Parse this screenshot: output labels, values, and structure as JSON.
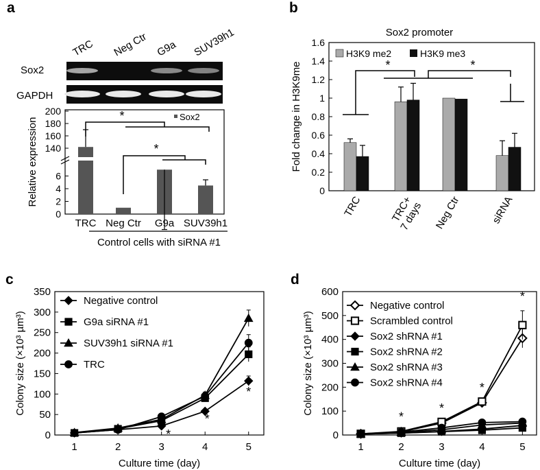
{
  "panels": {
    "a": {
      "letter": "a",
      "blot": {
        "lanes": [
          "TRC",
          "Neg Ctr",
          "G9a",
          "SUV39h1"
        ],
        "rows": [
          "Sox2",
          "GAPDH"
        ],
        "sox2_intensity": [
          0.75,
          0.0,
          0.55,
          0.5
        ],
        "gapdh_intensity": [
          0.95,
          0.95,
          0.95,
          0.95
        ]
      },
      "chart_data": {
        "type": "bar",
        "ylabel": "Relative expression",
        "xlabel": "Control cells with siRNA #1",
        "categories": [
          "TRC",
          "Neg Ctr",
          "G9a",
          "SUV39h1"
        ],
        "values": [
          142,
          1,
          7,
          4.5
        ],
        "errors": [
          28,
          0,
          1.3,
          0.9
        ],
        "y_lower_ticks": [
          0,
          2,
          4,
          6
        ],
        "y_upper_ticks": [
          140,
          160,
          180,
          200
        ],
        "y_axis_break": [
          8,
          130
        ],
        "legend": [
          "Sox2"
        ],
        "significance": [
          "*",
          "*"
        ],
        "bar_color": "#555555"
      }
    },
    "b": {
      "letter": "b",
      "chart_data": {
        "type": "bar",
        "title": "Sox2 promoter",
        "ylabel": "Fold change in H3K9me",
        "categories": [
          "TRC",
          "TRC+\n7 days",
          "Neg Ctr",
          "siRNA"
        ],
        "series": [
          {
            "name": "H3K9 me2",
            "values": [
              0.52,
              0.96,
              1.0,
              0.38
            ],
            "errors": [
              0.04,
              0.16,
              0.0,
              0.16
            ],
            "color": "#aaaaaa"
          },
          {
            "name": "H3K9 me3",
            "values": [
              0.37,
              0.98,
              0.99,
              0.47
            ],
            "errors": [
              0.12,
              0.18,
              0.0,
              0.15
            ],
            "color": "#111111"
          }
        ],
        "ylim": [
          0,
          1.6
        ],
        "yticks": [
          "0",
          "0.2",
          "0.4",
          "0.6",
          "0.8",
          "1",
          "1.2",
          "1.4",
          "1.6"
        ],
        "significance": [
          "*",
          "*"
        ]
      }
    },
    "c": {
      "letter": "c",
      "chart_data": {
        "type": "line",
        "xlabel": "Culture time (day)",
        "ylabel": "Colony size (×10³ µm³)",
        "x": [
          1,
          2,
          3,
          4,
          5
        ],
        "xlim": [
          0.55,
          5.35
        ],
        "ylim": [
          0,
          350
        ],
        "yticks": [
          0,
          50,
          100,
          150,
          200,
          250,
          300,
          350
        ],
        "series": [
          {
            "name": "Negative control",
            "marker": "diamond",
            "values": [
              5,
              13,
              22,
              58,
              132
            ],
            "errors": [
              2,
              2,
              3,
              5,
              12
            ]
          },
          {
            "name": "G9a siRNA #1",
            "marker": "square",
            "values": [
              5,
              15,
              35,
              90,
              197
            ],
            "errors": [
              2,
              2,
              4,
              8,
              18
            ]
          },
          {
            "name": "SUV39h1 siRNA #1",
            "marker": "triangle",
            "values": [
              6,
              17,
              38,
              97,
              285
            ],
            "errors": [
              2,
              2,
              4,
              8,
              20
            ]
          },
          {
            "name": "TRC",
            "marker": "circle",
            "values": [
              5,
              13,
              45,
              95,
              225
            ],
            "errors": [
              2,
              2,
              4,
              8,
              20
            ]
          }
        ],
        "significance": [
          {
            "x": 3,
            "label": "*"
          },
          {
            "x": 4,
            "label": "*"
          },
          {
            "x": 5,
            "label": "*"
          }
        ]
      }
    },
    "d": {
      "letter": "d",
      "chart_data": {
        "type": "line",
        "xlabel": "Culture time (day)",
        "ylabel": "Colony size (×10³ µm³)",
        "x": [
          1,
          2,
          3,
          4,
          5
        ],
        "xlim": [
          0.55,
          5.35
        ],
        "ylim": [
          0,
          600
        ],
        "yticks": [
          0,
          100,
          200,
          300,
          400,
          500,
          600
        ],
        "series": [
          {
            "name": "Negative control",
            "marker": "diamond-open",
            "values": [
              5,
              13,
              50,
              135,
              405
            ],
            "errors": [
              2,
              3,
              5,
              10,
              40
            ]
          },
          {
            "name": "Scrambled control",
            "marker": "square-open",
            "values": [
              5,
              15,
              55,
              140,
              460
            ],
            "errors": [
              2,
              3,
              5,
              10,
              60
            ]
          },
          {
            "name": "Sox2 shRNA #1",
            "marker": "diamond",
            "values": [
              4,
              8,
              15,
              25,
              40
            ],
            "errors": [
              1,
              1,
              2,
              3,
              4
            ]
          },
          {
            "name": "Sox2 shRNA #2",
            "marker": "square",
            "values": [
              4,
              8,
              14,
              20,
              30
            ],
            "errors": [
              1,
              1,
              2,
              3,
              4
            ]
          },
          {
            "name": "Sox2 shRNA #3",
            "marker": "triangle",
            "values": [
              5,
              10,
              22,
              42,
              50
            ],
            "errors": [
              1,
              1,
              2,
              3,
              4
            ]
          },
          {
            "name": "Sox2 shRNA #4",
            "marker": "circle",
            "values": [
              5,
              12,
              30,
              52,
              56
            ],
            "errors": [
              1,
              1,
              2,
              3,
              4
            ]
          }
        ],
        "significance": [
          {
            "x": 2,
            "label": "*"
          },
          {
            "x": 3,
            "label": "*"
          },
          {
            "x": 4,
            "label": "*"
          },
          {
            "x": 5,
            "label": "*"
          }
        ]
      }
    }
  }
}
